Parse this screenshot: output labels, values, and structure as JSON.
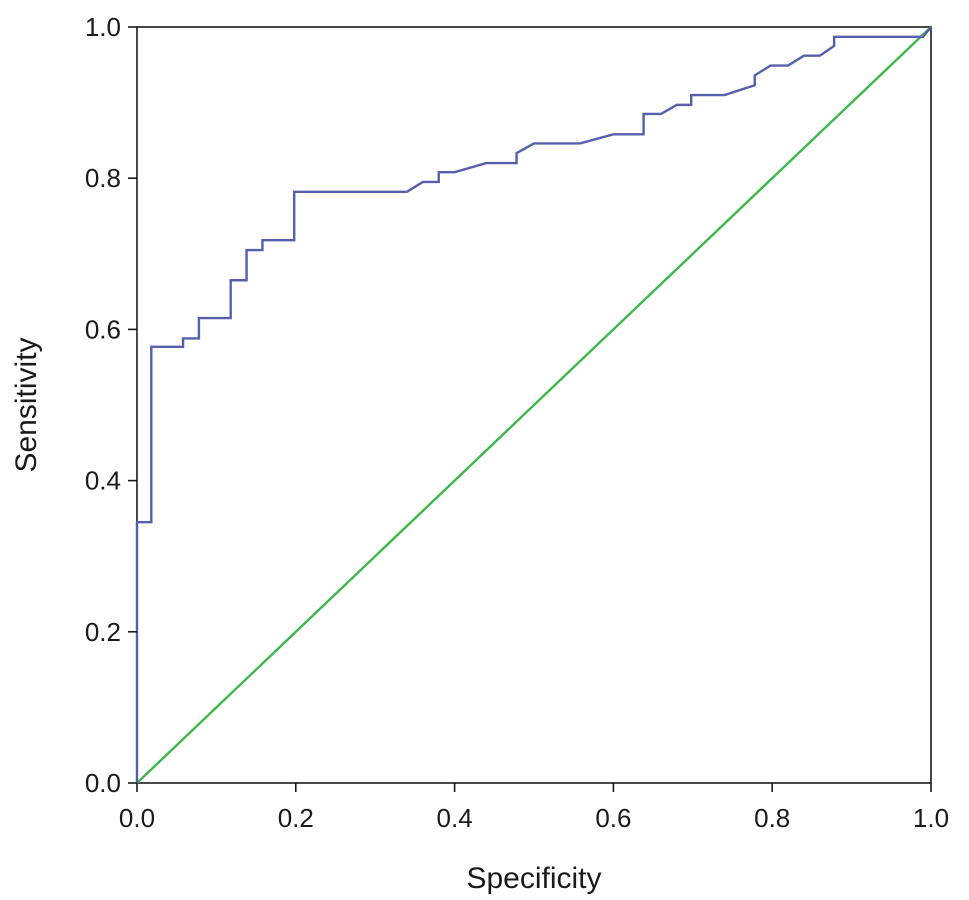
{
  "chart_data": {
    "type": "line",
    "title": "",
    "xlabel": "Specificity",
    "ylabel": "Sensitivity",
    "xlim": [
      0,
      1
    ],
    "ylim": [
      0,
      1
    ],
    "x_ticks": [
      "0.0",
      "0.2",
      "0.4",
      "0.6",
      "0.8",
      "1.0"
    ],
    "y_ticks": [
      "0.0",
      "0.2",
      "0.4",
      "0.6",
      "0.8",
      "1.0"
    ],
    "grid": false,
    "legend": "none",
    "series": [
      {
        "color": "#5560ac",
        "step": true,
        "points": [
          [
            0.0,
            0.0
          ],
          [
            0.0,
            0.345
          ],
          [
            0.018,
            0.345
          ],
          [
            0.018,
            0.577
          ],
          [
            0.058,
            0.577
          ],
          [
            0.058,
            0.588
          ],
          [
            0.078,
            0.588
          ],
          [
            0.078,
            0.615
          ],
          [
            0.118,
            0.615
          ],
          [
            0.118,
            0.665
          ],
          [
            0.138,
            0.665
          ],
          [
            0.138,
            0.705
          ],
          [
            0.158,
            0.705
          ],
          [
            0.158,
            0.718
          ],
          [
            0.198,
            0.718
          ],
          [
            0.198,
            0.782
          ],
          [
            0.34,
            0.782
          ],
          [
            0.36,
            0.795
          ],
          [
            0.38,
            0.795
          ],
          [
            0.38,
            0.808
          ],
          [
            0.4,
            0.808
          ],
          [
            0.44,
            0.82
          ],
          [
            0.478,
            0.82
          ],
          [
            0.478,
            0.833
          ],
          [
            0.5,
            0.846
          ],
          [
            0.558,
            0.846
          ],
          [
            0.6,
            0.858
          ],
          [
            0.638,
            0.858
          ],
          [
            0.638,
            0.885
          ],
          [
            0.66,
            0.885
          ],
          [
            0.68,
            0.897
          ],
          [
            0.698,
            0.897
          ],
          [
            0.698,
            0.91
          ],
          [
            0.74,
            0.91
          ],
          [
            0.778,
            0.923
          ],
          [
            0.778,
            0.936
          ],
          [
            0.798,
            0.949
          ],
          [
            0.82,
            0.949
          ],
          [
            0.84,
            0.962
          ],
          [
            0.86,
            0.962
          ],
          [
            0.878,
            0.975
          ],
          [
            0.878,
            0.987
          ],
          [
            0.99,
            0.987
          ],
          [
            1.0,
            1.0
          ]
        ]
      },
      {
        "color": "#3cb84a",
        "step": false,
        "points": [
          [
            0.0,
            0.0
          ],
          [
            1.0,
            1.0
          ]
        ]
      }
    ]
  },
  "colors": {
    "roc_curve": "#5560ac",
    "reference_line": "#3cb84a",
    "axis": "#1a1a1a"
  }
}
